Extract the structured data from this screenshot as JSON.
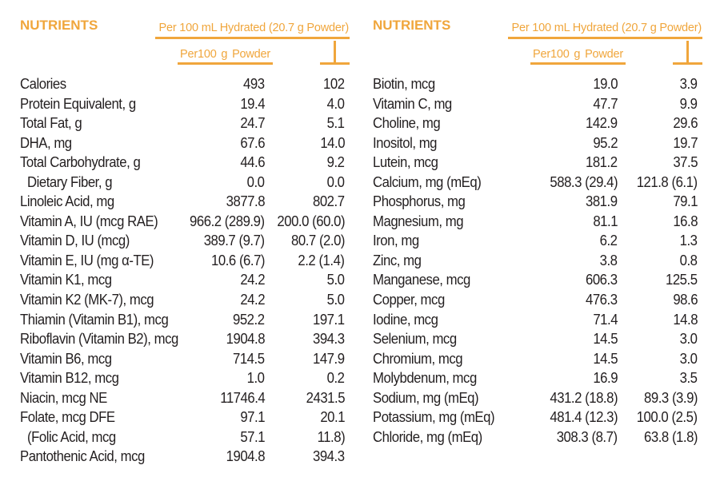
{
  "colors": {
    "accent": "#F0A63C",
    "text": "#231F20",
    "background": "#FFFFFF"
  },
  "tables": [
    {
      "title": "NUTRIENTS",
      "columns": {
        "hydrated_header": "Per 100 mL Hydrated (20.7 g Powder)",
        "powder_header": "Per100 g Powder"
      },
      "rows": [
        {
          "label": "Calories",
          "indent": false,
          "per100g_powder": "493",
          "per100ml_hydrated": "102"
        },
        {
          "label": "Protein Equivalent, g",
          "indent": false,
          "per100g_powder": "19.4",
          "per100ml_hydrated": "4.0"
        },
        {
          "label": "Total Fat, g",
          "indent": false,
          "per100g_powder": "24.7",
          "per100ml_hydrated": "5.1"
        },
        {
          "label": "DHA, mg",
          "indent": false,
          "per100g_powder": "67.6",
          "per100ml_hydrated": "14.0"
        },
        {
          "label": "Total Carbohydrate, g",
          "indent": false,
          "per100g_powder": "44.6",
          "per100ml_hydrated": "9.2"
        },
        {
          "label": "Dietary Fiber, g",
          "indent": true,
          "per100g_powder": "0.0",
          "per100ml_hydrated": "0.0"
        },
        {
          "label": "Linoleic Acid, mg",
          "indent": false,
          "per100g_powder": "3877.8",
          "per100ml_hydrated": "802.7"
        },
        {
          "label": "Vitamin A, IU (mcg RAE)",
          "indent": false,
          "per100g_powder": "966.2 (289.9)",
          "per100ml_hydrated": "200.0 (60.0)"
        },
        {
          "label": "Vitamin D, IU (mcg)",
          "indent": false,
          "per100g_powder": "389.7 (9.7)",
          "per100ml_hydrated": "80.7 (2.0)"
        },
        {
          "label": "Vitamin E, IU (mg α-TE)",
          "indent": false,
          "per100g_powder": "10.6 (6.7)",
          "per100ml_hydrated": "2.2 (1.4)"
        },
        {
          "label": "Vitamin K1, mcg",
          "indent": false,
          "per100g_powder": "24.2",
          "per100ml_hydrated": "5.0"
        },
        {
          "label": "Vitamin K2 (MK-7), mcg",
          "indent": false,
          "per100g_powder": "24.2",
          "per100ml_hydrated": "5.0"
        },
        {
          "label": "Thiamin (Vitamin B1), mcg",
          "indent": false,
          "per100g_powder": "952.2",
          "per100ml_hydrated": "197.1"
        },
        {
          "label": "Riboflavin (Vitamin B2), mcg",
          "indent": false,
          "per100g_powder": "1904.8",
          "per100ml_hydrated": "394.3"
        },
        {
          "label": "Vitamin B6, mcg",
          "indent": false,
          "per100g_powder": "714.5",
          "per100ml_hydrated": "147.9"
        },
        {
          "label": "Vitamin B12, mcg",
          "indent": false,
          "per100g_powder": "1.0",
          "per100ml_hydrated": "0.2"
        },
        {
          "label": "Niacin, mcg NE",
          "indent": false,
          "per100g_powder": "11746.4",
          "per100ml_hydrated": "2431.5"
        },
        {
          "label": "Folate, mcg DFE",
          "indent": false,
          "per100g_powder": "97.1",
          "per100ml_hydrated": "20.1"
        },
        {
          "label": "(Folic Acid, mcg",
          "indent": true,
          "per100g_powder": "57.1",
          "per100ml_hydrated": "11.8)"
        },
        {
          "label": "Pantothenic Acid, mcg",
          "indent": false,
          "per100g_powder": "1904.8",
          "per100ml_hydrated": "394.3"
        }
      ]
    },
    {
      "title": "NUTRIENTS",
      "columns": {
        "hydrated_header": "Per 100 mL Hydrated (20.7 g Powder)",
        "powder_header": "Per100 g Powder"
      },
      "rows": [
        {
          "label": "Biotin, mcg",
          "indent": false,
          "per100g_powder": "19.0",
          "per100ml_hydrated": "3.9"
        },
        {
          "label": "Vitamin C, mg",
          "indent": false,
          "per100g_powder": "47.7",
          "per100ml_hydrated": "9.9"
        },
        {
          "label": "Choline, mg",
          "indent": false,
          "per100g_powder": "142.9",
          "per100ml_hydrated": "29.6"
        },
        {
          "label": "Inositol, mg",
          "indent": false,
          "per100g_powder": "95.2",
          "per100ml_hydrated": "19.7"
        },
        {
          "label": "Lutein, mcg",
          "indent": false,
          "per100g_powder": "181.2",
          "per100ml_hydrated": "37.5"
        },
        {
          "label": "Calcium, mg (mEq)",
          "indent": false,
          "per100g_powder": "588.3 (29.4)",
          "per100ml_hydrated": "121.8 (6.1)"
        },
        {
          "label": "Phosphorus, mg",
          "indent": false,
          "per100g_powder": "381.9",
          "per100ml_hydrated": "79.1"
        },
        {
          "label": "Magnesium, mg",
          "indent": false,
          "per100g_powder": "81.1",
          "per100ml_hydrated": "16.8"
        },
        {
          "label": "Iron, mg",
          "indent": false,
          "per100g_powder": "6.2",
          "per100ml_hydrated": "1.3"
        },
        {
          "label": "Zinc, mg",
          "indent": false,
          "per100g_powder": "3.8",
          "per100ml_hydrated": "0.8"
        },
        {
          "label": "Manganese, mcg",
          "indent": false,
          "per100g_powder": "606.3",
          "per100ml_hydrated": "125.5"
        },
        {
          "label": "Copper, mcg",
          "indent": false,
          "per100g_powder": "476.3",
          "per100ml_hydrated": "98.6"
        },
        {
          "label": "Iodine, mcg",
          "indent": false,
          "per100g_powder": "71.4",
          "per100ml_hydrated": "14.8"
        },
        {
          "label": "Selenium, mcg",
          "indent": false,
          "per100g_powder": "14.5",
          "per100ml_hydrated": "3.0"
        },
        {
          "label": "Chromium, mcg",
          "indent": false,
          "per100g_powder": "14.5",
          "per100ml_hydrated": "3.0"
        },
        {
          "label": "Molybdenum, mcg",
          "indent": false,
          "per100g_powder": "16.9",
          "per100ml_hydrated": "3.5"
        },
        {
          "label": "Sodium, mg (mEq)",
          "indent": false,
          "per100g_powder": "431.2 (18.8)",
          "per100ml_hydrated": "89.3 (3.9)"
        },
        {
          "label": "Potassium, mg (mEq)",
          "indent": false,
          "per100g_powder": "481.4 (12.3)",
          "per100ml_hydrated": "100.0 (2.5)"
        },
        {
          "label": "Chloride, mg (mEq)",
          "indent": false,
          "per100g_powder": "308.3 (8.7)",
          "per100ml_hydrated": "63.8 (1.8)"
        }
      ]
    }
  ]
}
